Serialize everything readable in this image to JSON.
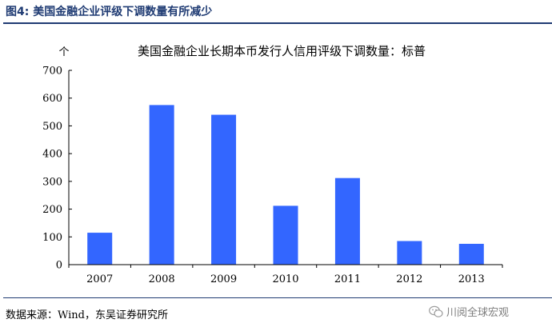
{
  "figure": {
    "label": "图4:",
    "caption": "美国金融企业评级下调数量有所减少",
    "source": "数据来源：Wind，东吴证券研究所",
    "watermark": "川阅全球宏观",
    "watermark_icon": "wechat-icon"
  },
  "colors": {
    "bar": "#3366ff",
    "header": "#1f3b73",
    "axis": "#000000"
  },
  "chart_data": {
    "type": "bar",
    "title": "美国金融企业长期本币发行人信用评级下调数量：标普",
    "ylabel": "个",
    "xlabel": "",
    "categories": [
      "2007",
      "2008",
      "2009",
      "2010",
      "2011",
      "2012",
      "2013"
    ],
    "values": [
      115,
      575,
      540,
      212,
      312,
      85,
      75
    ],
    "ylim": [
      0,
      700
    ],
    "yticks": [
      0,
      100,
      200,
      300,
      400,
      500,
      600,
      700
    ],
    "grid": false,
    "legend": "none"
  }
}
